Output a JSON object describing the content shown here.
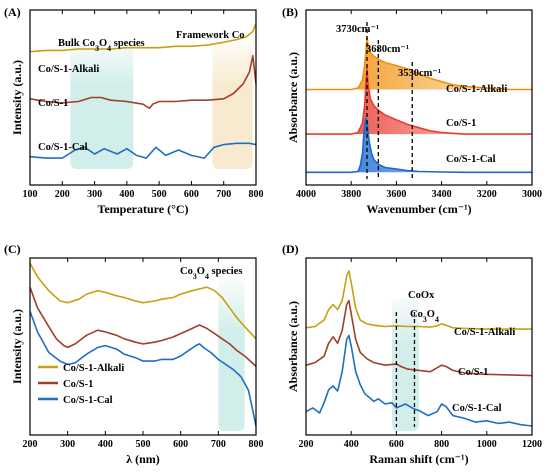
{
  "panels": [
    {
      "label": "(A)"
    },
    {
      "label": "(B)"
    },
    {
      "label": "(C)"
    },
    {
      "label": "(D)"
    }
  ],
  "chart_data": [
    {
      "id": "A",
      "type": "line",
      "xlabel": "Temperature (°C)",
      "ylabel": "Intensity (a.u.)",
      "xlim": [
        100,
        800
      ],
      "xticks": [
        100,
        200,
        300,
        400,
        500,
        600,
        700,
        800
      ],
      "yticks_shown": false,
      "annotations": [
        "Bulk Co3O4 species",
        "Framework Co"
      ],
      "shaded_regions": [
        {
          "x": [
            225,
            420
          ],
          "color": "#cdece8"
        },
        {
          "x": [
            665,
            790
          ],
          "color": "#f7e8c8"
        }
      ],
      "series": [
        {
          "name": "Co/S-1-Alkali",
          "color": "#c8a010",
          "x": [
            100,
            150,
            200,
            250,
            300,
            350,
            400,
            450,
            500,
            550,
            600,
            650,
            700,
            740,
            770,
            790,
            800
          ],
          "y": [
            9.9,
            10.0,
            10.0,
            10.1,
            10.1,
            10.1,
            10.2,
            10.2,
            10.2,
            10.3,
            10.3,
            10.4,
            10.6,
            10.8,
            11.0,
            11.4,
            12.0
          ]
        },
        {
          "name": "Co/S-1",
          "color": "#a0402a",
          "x": [
            100,
            150,
            200,
            250,
            290,
            320,
            350,
            400,
            450,
            470,
            480,
            500,
            550,
            600,
            650,
            700,
            730,
            760,
            780,
            790,
            800
          ],
          "y": [
            6.4,
            6.2,
            6.1,
            6.2,
            6.5,
            6.5,
            6.3,
            6.2,
            6.0,
            5.7,
            6.0,
            6.2,
            6.2,
            6.3,
            6.3,
            6.4,
            6.8,
            7.5,
            8.4,
            9.6,
            7.5
          ]
        },
        {
          "name": "Co/S-1-Cal",
          "color": "#1f6fc4",
          "x": [
            100,
            150,
            200,
            240,
            270,
            300,
            330,
            370,
            400,
            430,
            460,
            490,
            520,
            560,
            600,
            640,
            670,
            700,
            740,
            780,
            800
          ],
          "y": [
            2.1,
            2.0,
            2.0,
            2.6,
            2.8,
            2.3,
            2.7,
            2.3,
            2.7,
            2.2,
            2.0,
            2.8,
            2.2,
            2.6,
            2.2,
            2.0,
            2.8,
            3.0,
            3.1,
            3.1,
            3.0
          ]
        }
      ]
    },
    {
      "id": "B",
      "type": "area",
      "xlabel": "Wavenumber (cm⁻¹)",
      "ylabel": "Absorbance (a.u.)",
      "xlim": [
        4000,
        3000
      ],
      "xticks": [
        4000,
        3800,
        3600,
        3400,
        3200,
        3000
      ],
      "yticks_shown": false,
      "vlines": [
        3730,
        3680,
        3530
      ],
      "annotations": [
        "3730cm⁻¹",
        "3680cm⁻¹",
        "3530cm⁻¹"
      ],
      "series": [
        {
          "name": "Co/S-1-Alkali",
          "color": "#f0900a",
          "x": [
            4000,
            3800,
            3770,
            3750,
            3740,
            3735,
            3730,
            3725,
            3715,
            3700,
            3680,
            3650,
            3600,
            3550,
            3500,
            3450,
            3400,
            3350,
            3300,
            3200,
            3100,
            3000
          ],
          "y": [
            6.0,
            6.0,
            6.1,
            6.6,
            7.6,
            8.4,
            9.3,
            8.8,
            8.3,
            8.1,
            7.9,
            7.7,
            7.5,
            7.3,
            7.0,
            6.7,
            6.5,
            6.3,
            6.2,
            6.1,
            6.0,
            6.0
          ],
          "base": 6.0
        },
        {
          "name": "Co/S-1",
          "color": "#ea3a2e",
          "x": [
            4000,
            3800,
            3770,
            3750,
            3740,
            3735,
            3730,
            3725,
            3715,
            3700,
            3680,
            3650,
            3600,
            3550,
            3500,
            3450,
            3400,
            3350,
            3300,
            3200,
            3100,
            3000
          ],
          "y": [
            3.2,
            3.2,
            3.3,
            3.9,
            5.1,
            6.4,
            7.3,
            6.3,
            5.4,
            5.0,
            4.7,
            4.4,
            4.1,
            3.8,
            3.6,
            3.4,
            3.3,
            3.25,
            3.2,
            3.2,
            3.2,
            3.2
          ],
          "base": 3.2
        },
        {
          "name": "Co/S-1-Cal",
          "color": "#1a6ad0",
          "x": [
            4000,
            3800,
            3770,
            3760,
            3750,
            3745,
            3740,
            3735,
            3730,
            3725,
            3720,
            3710,
            3700,
            3680,
            3650,
            3600,
            3550,
            3500,
            3400,
            3300,
            3200,
            3000
          ],
          "y": [
            0.8,
            0.8,
            0.85,
            1.2,
            2.0,
            3.0,
            3.8,
            4.2,
            4.0,
            3.3,
            2.7,
            2.0,
            1.6,
            1.3,
            1.1,
            1.0,
            0.9,
            0.85,
            0.82,
            0.8,
            0.8,
            0.8
          ],
          "base": 0.8
        }
      ]
    },
    {
      "id": "C",
      "type": "line",
      "xlabel": "λ (nm)",
      "ylabel": "Intensity (a.u.)",
      "xlim": [
        200,
        800
      ],
      "xticks": [
        200,
        300,
        400,
        500,
        600,
        700,
        800
      ],
      "yticks_shown": false,
      "annotations": [
        "Co3O4 species"
      ],
      "shaded_regions": [
        {
          "x": [
            700,
            770
          ],
          "color": "#cdece8"
        }
      ],
      "legend_position": "lower-left",
      "series": [
        {
          "name": "Co/S-1-Alkali",
          "color": "#c8a010",
          "x": [
            200,
            220,
            250,
            280,
            300,
            330,
            350,
            380,
            400,
            430,
            450,
            480,
            500,
            530,
            550,
            580,
            600,
            630,
            650,
            670,
            690,
            710,
            730,
            750,
            770,
            800
          ],
          "y": [
            10.0,
            9.2,
            8.4,
            7.8,
            7.7,
            7.9,
            8.2,
            8.4,
            8.3,
            8.1,
            8.0,
            7.8,
            7.7,
            7.8,
            7.9,
            8.0,
            8.2,
            8.4,
            8.5,
            8.6,
            8.4,
            8.0,
            7.4,
            6.8,
            6.3,
            5.6
          ]
        },
        {
          "name": "Co/S-1",
          "color": "#a0402a",
          "x": [
            200,
            220,
            250,
            270,
            290,
            300,
            320,
            350,
            380,
            400,
            430,
            450,
            480,
            500,
            530,
            550,
            580,
            600,
            630,
            650,
            670,
            690,
            710,
            730,
            750,
            770,
            800
          ],
          "y": [
            8.6,
            7.4,
            6.3,
            5.6,
            5.2,
            5.1,
            5.3,
            5.8,
            6.1,
            6.0,
            5.8,
            5.6,
            5.4,
            5.3,
            5.4,
            5.5,
            5.7,
            5.9,
            6.2,
            6.4,
            6.2,
            5.9,
            5.6,
            5.3,
            4.9,
            4.6,
            4.0
          ]
        },
        {
          "name": "Co/S-1-Cal",
          "color": "#1f6fc4",
          "x": [
            200,
            220,
            250,
            280,
            300,
            320,
            350,
            380,
            400,
            430,
            450,
            480,
            500,
            530,
            550,
            580,
            600,
            620,
            640,
            650,
            660,
            680,
            700,
            720,
            740,
            760,
            780,
            790,
            800
          ],
          "y": [
            7.2,
            6.0,
            4.8,
            4.3,
            4.1,
            4.2,
            4.7,
            5.1,
            5.2,
            5.0,
            4.7,
            4.5,
            4.3,
            4.3,
            4.4,
            4.4,
            4.6,
            4.9,
            5.2,
            5.3,
            5.1,
            4.8,
            4.4,
            4.1,
            3.8,
            3.4,
            2.6,
            1.6,
            0.5
          ]
        }
      ]
    },
    {
      "id": "D",
      "type": "line",
      "xlabel": "Raman shift (cm⁻¹)",
      "ylabel": "Absorbance (a.u.)",
      "xlim": [
        200,
        1200
      ],
      "xticks": [
        200,
        400,
        600,
        800,
        1000,
        1200
      ],
      "yticks_shown": false,
      "vlines": [
        600,
        680
      ],
      "annotations": [
        "CoOx",
        "Co3O4"
      ],
      "shaded_regions": [
        {
          "x": [
            580,
            700
          ],
          "color": "#cdece8"
        }
      ],
      "series": [
        {
          "name": "Co/S-1-Alkali",
          "color": "#c8a010",
          "x": [
            200,
            240,
            280,
            300,
            320,
            340,
            360,
            380,
            390,
            400,
            420,
            440,
            470,
            500,
            550,
            600,
            650,
            700,
            750,
            780,
            800,
            820,
            850,
            900,
            1000,
            1100,
            1200
          ],
          "y": [
            10.8,
            10.9,
            11.4,
            12.2,
            12.6,
            12.2,
            12.9,
            14.8,
            15.2,
            14.3,
            12.3,
            11.4,
            11.1,
            11.0,
            10.9,
            10.95,
            10.9,
            10.9,
            10.85,
            10.95,
            11.1,
            11.0,
            10.8,
            10.75,
            10.7,
            10.7,
            10.7
          ]
        },
        {
          "name": "Co/S-1",
          "color": "#a0402a",
          "x": [
            200,
            240,
            280,
            300,
            320,
            340,
            360,
            380,
            390,
            400,
            420,
            440,
            470,
            500,
            550,
            600,
            620,
            650,
            700,
            750,
            800,
            820,
            850,
            900,
            1000,
            1100,
            1200
          ],
          "y": [
            7.9,
            8.1,
            8.6,
            9.6,
            10.1,
            9.6,
            10.6,
            12.6,
            12.9,
            11.9,
            9.9,
            8.9,
            8.4,
            8.1,
            7.9,
            8.0,
            7.8,
            7.6,
            7.5,
            7.4,
            7.9,
            7.8,
            7.5,
            7.3,
            7.2,
            7.15,
            7.1
          ]
        },
        {
          "name": "Co/S-1-Cal",
          "color": "#1f6fc4",
          "x": [
            200,
            230,
            260,
            280,
            300,
            320,
            340,
            360,
            380,
            390,
            400,
            420,
            440,
            460,
            480,
            500,
            520,
            550,
            580,
            600,
            640,
            680,
            700,
            740,
            780,
            800,
            820,
            850,
            900,
            950,
            1000,
            1050,
            1100,
            1150,
            1200
          ],
          "y": [
            4.3,
            4.6,
            4.2,
            5.0,
            6.0,
            6.3,
            5.9,
            7.4,
            9.9,
            10.2,
            9.4,
            7.4,
            6.4,
            5.7,
            5.4,
            5.1,
            5.3,
            4.9,
            5.0,
            4.6,
            4.9,
            4.5,
            4.4,
            4.0,
            4.3,
            4.9,
            4.7,
            4.0,
            3.8,
            3.5,
            3.6,
            3.4,
            3.5,
            3.3,
            3.2
          ]
        }
      ]
    }
  ]
}
